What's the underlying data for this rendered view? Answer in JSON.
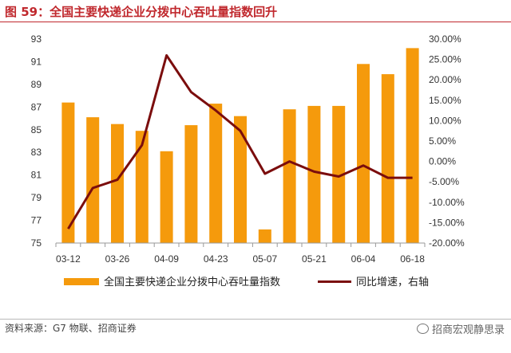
{
  "title": "图 59：全国主要快递企业分拨中心吞吐量指数回升",
  "chart_data": {
    "type": "bar+line",
    "categories": [
      "03-12",
      "03-19",
      "03-26",
      "04-02",
      "04-09",
      "04-16",
      "04-23",
      "04-30",
      "05-07",
      "05-14",
      "05-21",
      "05-28",
      "06-04",
      "06-11",
      "06-18"
    ],
    "x_tick_labels": [
      "03-12",
      "03-26",
      "04-09",
      "04-23",
      "05-07",
      "05-21",
      "06-04",
      "06-18"
    ],
    "series": [
      {
        "name": "全国主要快递企业分拨中心吞吐量指数",
        "type": "bar",
        "axis": "left",
        "color": "#f59a0c",
        "values": [
          87.4,
          86.1,
          85.5,
          84.9,
          83.1,
          85.4,
          87.3,
          86.2,
          76.2,
          86.8,
          87.1,
          87.1,
          90.8,
          89.9,
          92.2
        ]
      },
      {
        "name": "同比增速，右轴",
        "type": "line",
        "axis": "right",
        "color": "#7b0d0d",
        "values": [
          -16.5,
          -6.5,
          -4.5,
          4.0,
          26.0,
          17.0,
          12.5,
          7.5,
          -3.0,
          0.0,
          -2.5,
          -3.7,
          -1.0,
          -4.0,
          -4.0
        ]
      }
    ],
    "y_left": {
      "min": 75,
      "max": 93,
      "ticks": [
        75,
        77,
        79,
        81,
        83,
        85,
        87,
        89,
        91,
        93
      ]
    },
    "y_right": {
      "min": -20,
      "max": 30,
      "ticks": [
        "-20.00%",
        "-15.00%",
        "-10.00%",
        "-5.00%",
        "0.00%",
        "5.00%",
        "10.00%",
        "15.00%",
        "20.00%",
        "25.00%",
        "30.00%"
      ]
    },
    "grid": false,
    "legend_position": "bottom"
  },
  "footer": {
    "source": "资料来源：G7 物联、招商证券",
    "watermark": "招商宏观静思录",
    "watermark_icon": "wechat-icon"
  }
}
